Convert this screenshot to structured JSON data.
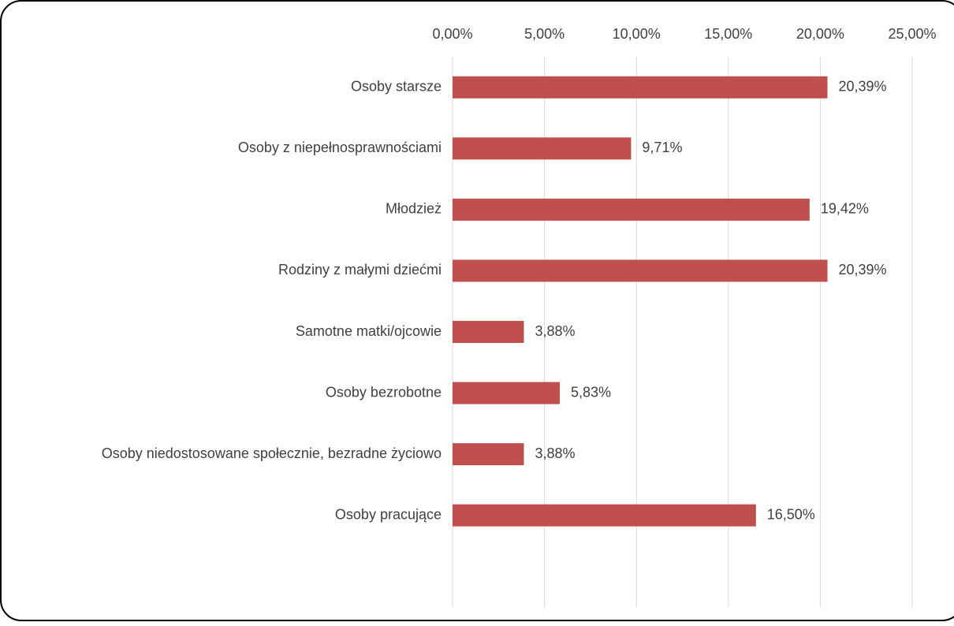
{
  "chart_data": {
    "type": "bar",
    "orientation": "horizontal",
    "categories": [
      "Osoby starsze",
      "Osoby z niepełnosprawnościami",
      "Młodzież",
      "Rodziny z małymi dziećmi",
      "Samotne matki/ojcowie",
      "Osoby bezrobotne",
      "Osoby niedostosowane społecznie, bezradne życiowo",
      "Osoby pracujące",
      null
    ],
    "values": [
      20.39,
      9.71,
      19.42,
      20.39,
      3.88,
      5.83,
      3.88,
      16.5,
      null
    ],
    "value_labels": [
      "20,39%",
      "9,71%",
      "19,42%",
      "20,39%",
      "3,88%",
      "5,83%",
      "3,88%",
      "16,50%",
      null
    ],
    "color": "#c0504d",
    "xlim": [
      0,
      25
    ],
    "xticks": [
      {
        "value": 0,
        "label": "0,00%"
      },
      {
        "value": 5,
        "label": "5,00%"
      },
      {
        "value": 10,
        "label": "10,00%"
      },
      {
        "value": 15,
        "label": "15,00%"
      },
      {
        "value": 20,
        "label": "20,00%"
      },
      {
        "value": 25,
        "label": "25,00%"
      }
    ],
    "grid": true
  }
}
